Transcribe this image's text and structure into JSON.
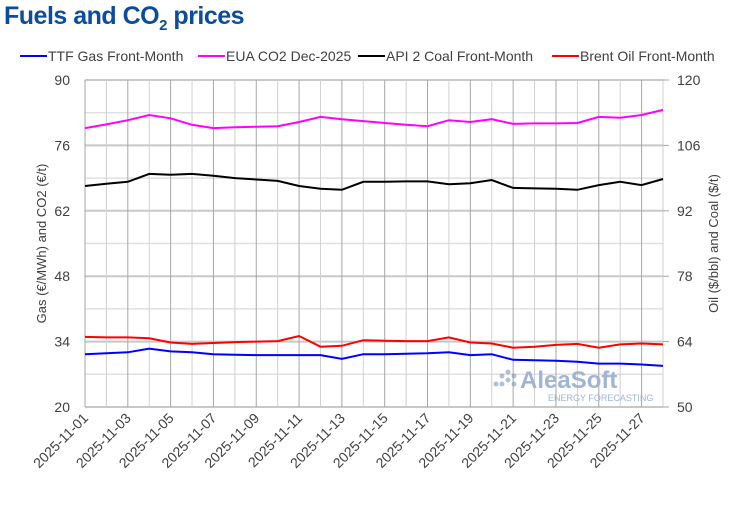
{
  "chart_data": {
    "type": "line",
    "title_main": "Fuels and CO",
    "title_sub": "2",
    "title_end": " prices",
    "ylabel_left": "Gas (€/MWh) and CO2 (€/t)",
    "ylabel_right": "Oil ($/bbl) and Coal ($/t)",
    "ylim_left": [
      20,
      90
    ],
    "ylim_right": [
      50,
      120
    ],
    "yticks_left": [
      20,
      34,
      48,
      62,
      76,
      90
    ],
    "yticks_right": [
      50,
      64,
      78,
      92,
      106,
      120
    ],
    "grid": true,
    "legend_position": "top",
    "x": [
      "2025-11-01",
      "2025-11-02",
      "2025-11-03",
      "2025-11-04",
      "2025-11-05",
      "2025-11-06",
      "2025-11-07",
      "2025-11-08",
      "2025-11-09",
      "2025-11-10",
      "2025-11-11",
      "2025-11-12",
      "2025-11-13",
      "2025-11-14",
      "2025-11-15",
      "2025-11-16",
      "2025-11-17",
      "2025-11-18",
      "2025-11-19",
      "2025-11-20",
      "2025-11-21",
      "2025-11-22",
      "2025-11-23",
      "2025-11-24",
      "2025-11-25",
      "2025-11-26",
      "2025-11-27",
      "2025-11-28"
    ],
    "xtick_labels": [
      "2025-11-01",
      "2025-11-03",
      "2025-11-05",
      "2025-11-07",
      "2025-11-09",
      "2025-11-11",
      "2025-11-13",
      "2025-11-15",
      "2025-11-17",
      "2025-11-19",
      "2025-11-21",
      "2025-11-23",
      "2025-11-25",
      "2025-11-27"
    ],
    "series": [
      {
        "name": "TTF Gas Front-Month",
        "axis": "left",
        "color": "#0000ff",
        "values": [
          31.3,
          31.5,
          31.7,
          32.5,
          31.9,
          31.7,
          31.3,
          31.2,
          31.1,
          31.1,
          31.1,
          31.1,
          30.3,
          31.3,
          31.3,
          31.4,
          31.5,
          31.7,
          31.1,
          31.3,
          30.1,
          30.0,
          29.9,
          29.7,
          29.3,
          29.3,
          29.1,
          28.8
        ]
      },
      {
        "name": "EUA CO2 Dec-2025",
        "axis": "left",
        "color": "#ff00ff",
        "values": [
          79.7,
          80.5,
          81.4,
          82.5,
          81.8,
          80.4,
          79.7,
          79.9,
          80.0,
          80.1,
          81.0,
          82.1,
          81.6,
          81.2,
          80.8,
          80.4,
          80.1,
          81.4,
          81.0,
          81.6,
          80.6,
          80.7,
          80.7,
          80.8,
          82.1,
          81.9,
          82.5,
          83.6
        ]
      },
      {
        "name": "API 2 Coal Front-Month",
        "axis": "right",
        "color": "#000000",
        "values": [
          97.3,
          97.8,
          98.2,
          99.9,
          99.7,
          99.9,
          99.5,
          99.0,
          98.7,
          98.4,
          97.3,
          96.7,
          96.5,
          98.2,
          98.2,
          98.3,
          98.3,
          97.7,
          97.9,
          98.6,
          96.9,
          96.8,
          96.7,
          96.5,
          97.5,
          98.2,
          97.5,
          98.8
        ]
      },
      {
        "name": "Brent Oil Front-Month",
        "axis": "right",
        "color": "#ff0000",
        "values": [
          65.0,
          64.9,
          64.9,
          64.7,
          63.8,
          63.5,
          63.7,
          63.9,
          64.0,
          64.1,
          65.2,
          62.9,
          63.1,
          64.3,
          64.2,
          64.1,
          64.1,
          64.9,
          63.8,
          63.6,
          62.7,
          62.9,
          63.3,
          63.5,
          62.7,
          63.4,
          63.6,
          63.4
        ]
      }
    ]
  },
  "watermark": {
    "brand": "AleaSoft",
    "tagline": "ENERGY FORECASTING"
  }
}
